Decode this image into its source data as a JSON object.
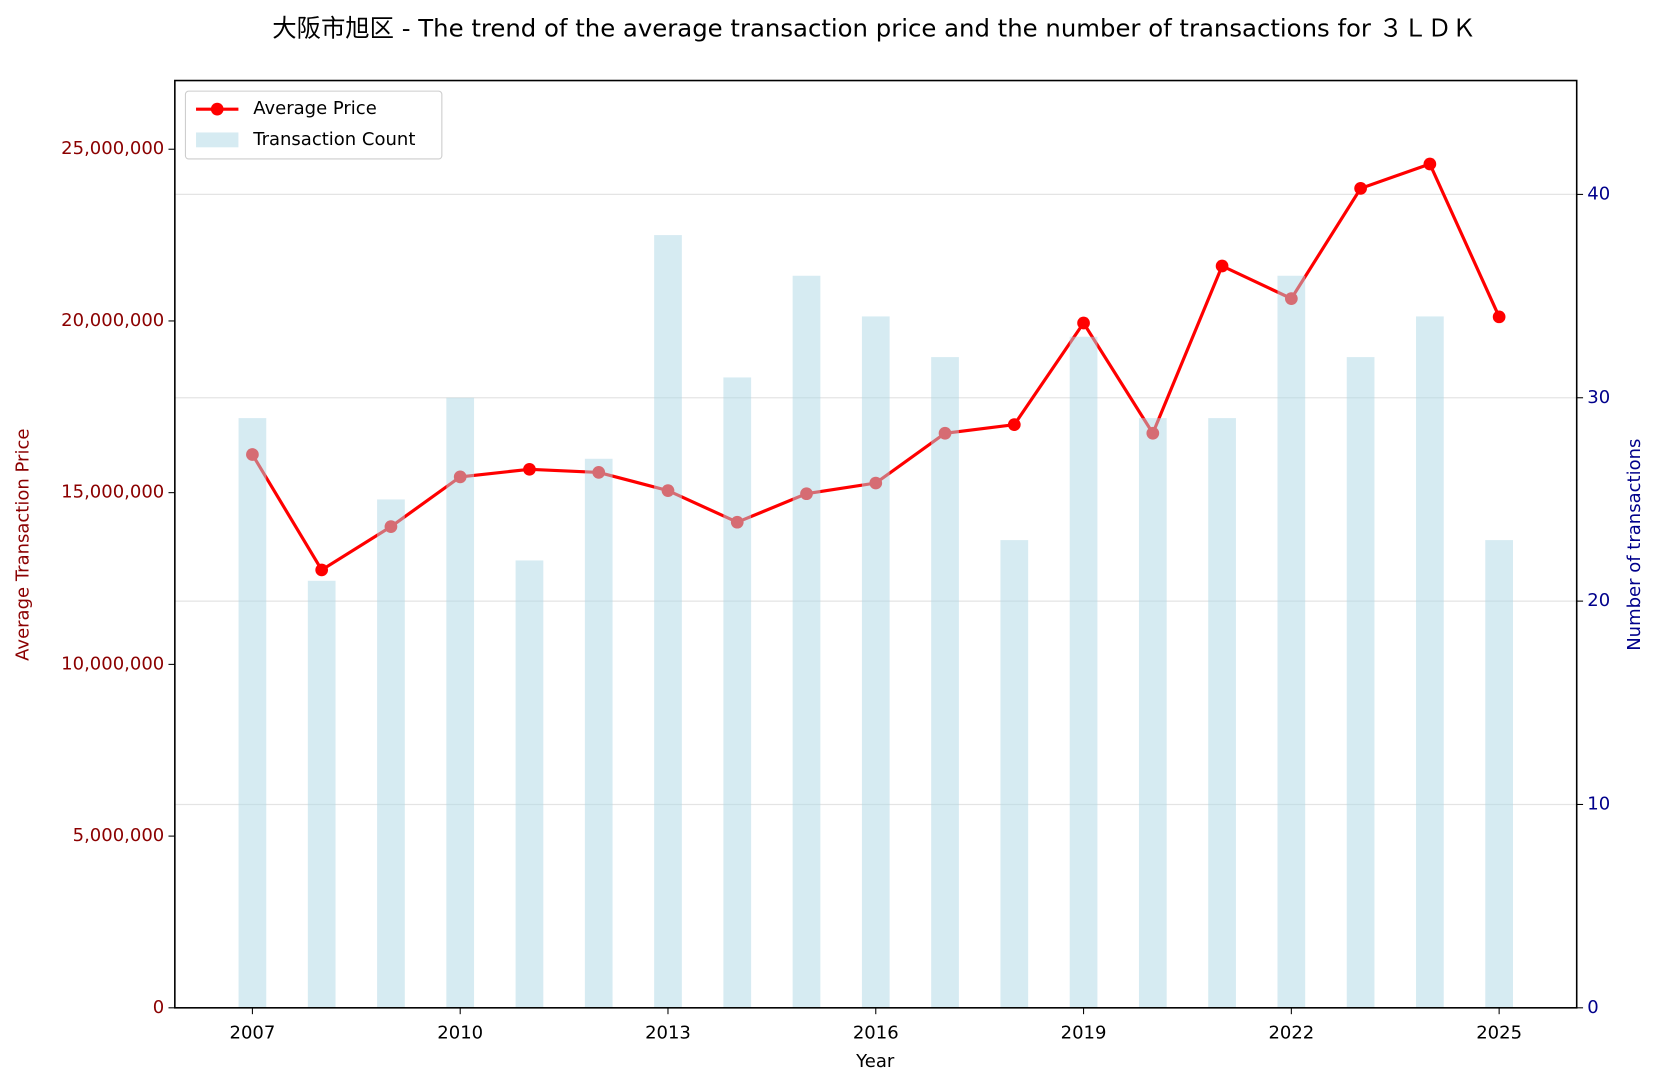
{
  "chart_data": {
    "type": "bar-line",
    "title": "大阪市旭区 - The trend of the average transaction price and the number of transactions for ３ＬＤＫ",
    "x_label": "Year",
    "y_label": "Average Transaction Price",
    "y2_label": "Number of transactions",
    "x": [
      2007,
      2008,
      2009,
      2010,
      2011,
      2012,
      2013,
      2014,
      2015,
      2016,
      2017,
      2018,
      2019,
      2020,
      2021,
      2022,
      2023,
      2024,
      2025
    ],
    "series": [
      {
        "name": "Average Price",
        "type": "line",
        "color": "#ff0000",
        "values": [
          16110000,
          12750000,
          14010000,
          15460000,
          15680000,
          15590000,
          15060000,
          14140000,
          14970000,
          15280000,
          16730000,
          16980000,
          19940000,
          16730000,
          21600000,
          20650000,
          23860000,
          24570000,
          20120000
        ]
      },
      {
        "name": "Transaction Count",
        "type": "bar",
        "axis": "y2",
        "color": "#add8e6",
        "values": [
          29,
          21,
          25,
          30,
          22,
          27,
          38,
          31,
          36,
          34,
          32,
          23,
          33,
          29,
          29,
          36,
          32,
          34,
          23
        ]
      }
    ],
    "xlim": [
      2005.88,
      2026.12
    ],
    "xticks": [
      2007,
      2010,
      2013,
      2016,
      2019,
      2022,
      2025
    ],
    "ylim": [
      0,
      27000000
    ],
    "yticks": [
      0,
      {
        "value": 5000000,
        "label": "5,000,000"
      },
      {
        "value": 10000000,
        "label": "10,000,000"
      },
      {
        "value": 15000000,
        "label": "15,000,000"
      },
      {
        "value": 20000000,
        "label": "20,000,000"
      },
      {
        "value": 25000000,
        "label": "25,000,000"
      }
    ],
    "y2lim": [
      0,
      45.6
    ],
    "y2ticks": [
      0,
      10,
      20,
      30,
      40
    ],
    "grid": true,
    "legend": "upper-left"
  }
}
